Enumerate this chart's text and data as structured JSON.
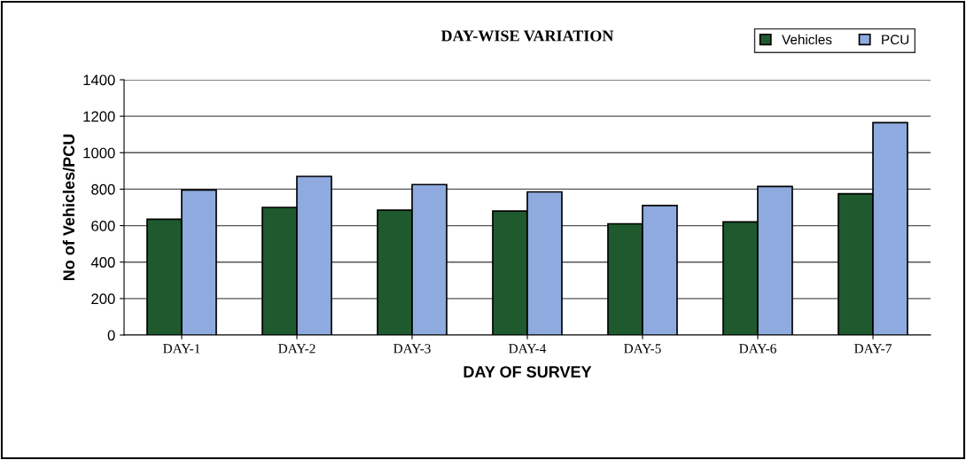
{
  "chart_data": {
    "type": "bar",
    "title": "DAY-WISE VARIATION",
    "xlabel": "DAY OF SURVEY",
    "ylabel": "No of Vehicles/PCU",
    "categories": [
      "DAY-1",
      "DAY-2",
      "DAY-3",
      "DAY-4",
      "DAY-5",
      "DAY-6",
      "DAY-7"
    ],
    "series": [
      {
        "name": "Vehicles",
        "color": "#1e5a2e",
        "values": [
          635,
          700,
          685,
          680,
          610,
          620,
          775
        ]
      },
      {
        "name": "PCU",
        "color": "#8eaadf",
        "values": [
          795,
          870,
          825,
          785,
          710,
          815,
          1165
        ]
      }
    ],
    "ylim": [
      0,
      1400
    ],
    "yticks": [
      0,
      200,
      400,
      600,
      800,
      1000,
      1200,
      1400
    ],
    "grid": "y",
    "legend": "top right"
  }
}
